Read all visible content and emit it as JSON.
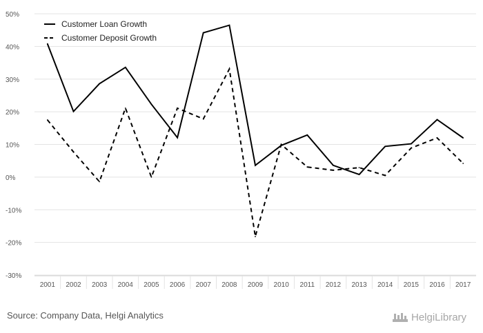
{
  "chart_data": {
    "type": "line",
    "categories": [
      "2001",
      "2002",
      "2003",
      "2004",
      "2005",
      "2006",
      "2007",
      "2008",
      "2009",
      "2010",
      "2011",
      "2012",
      "2013",
      "2014",
      "2015",
      "2016",
      "2017"
    ],
    "series": [
      {
        "name": "Customer Loan Growth",
        "style": "solid",
        "values": [
          40.8,
          20.1,
          28.6,
          33.6,
          22.3,
          12.1,
          44.2,
          46.5,
          3.6,
          9.7,
          12.9,
          3.6,
          0.8,
          9.4,
          10.2,
          17.6,
          12.0
        ]
      },
      {
        "name": "Customer Deposit Growth",
        "style": "dashed",
        "values": [
          17.5,
          7.7,
          -1.4,
          21.1,
          0.0,
          21.1,
          17.8,
          33.1,
          -18.2,
          10.0,
          3.1,
          2.1,
          2.9,
          0.5,
          8.9,
          12.0,
          4.2
        ]
      }
    ],
    "y_ticks": [
      "50%",
      "40%",
      "30%",
      "20%",
      "10%",
      "0%",
      "-10%",
      "-20%",
      "-30%"
    ],
    "ylim": [
      -30,
      50
    ],
    "grid": true,
    "legend_position": "top-left",
    "line_color": "#000000"
  },
  "footer": {
    "source": "Source: Company Data, Helgi Analytics",
    "brand": "HelgiLibrary"
  }
}
